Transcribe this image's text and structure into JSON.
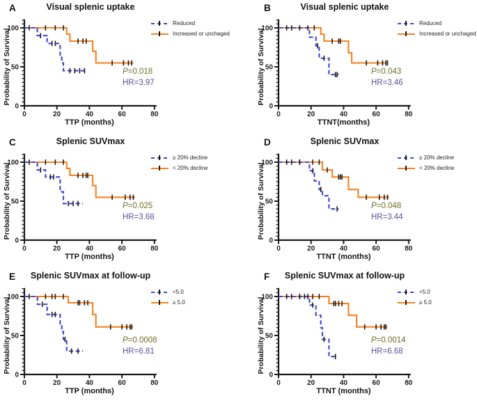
{
  "figure": {
    "ylabel": "Probability of Survival",
    "x_ticks": [
      0,
      20,
      40,
      60,
      80
    ],
    "y_ticks": [
      0,
      50,
      100
    ],
    "colors": {
      "blue": "#3f47cc",
      "orange": "#f58220",
      "censor": "#1a1a1a",
      "axis": "#1a1a1a",
      "p_text": "#6e6e28",
      "hr_text": "#5c4e9c"
    }
  },
  "chart_data": [
    {
      "type": "line",
      "letter": "A",
      "title": "Visual splenic uptake",
      "xlabel": "TTP (months)",
      "xlim": [
        0,
        80
      ],
      "ylim": [
        0,
        100
      ],
      "p_label": "P",
      "p_rest": "=0.018",
      "hr": "HR=3.97",
      "series": [
        {
          "name": "Reduced",
          "color": "blue",
          "dash": true,
          "points": [
            [
              0,
              100
            ],
            [
              8,
              100
            ],
            [
              8,
              90
            ],
            [
              14,
              90
            ],
            [
              14,
              80
            ],
            [
              22,
              80
            ],
            [
              22,
              65
            ],
            [
              23,
              65
            ],
            [
              23,
              55
            ],
            [
              24,
              55
            ],
            [
              24,
              45
            ],
            [
              38,
              45
            ]
          ],
          "censors": [
            [
              3,
              100
            ],
            [
              10,
              90
            ],
            [
              17,
              80
            ],
            [
              19,
              80
            ],
            [
              28,
              45
            ],
            [
              31,
              45
            ],
            [
              34,
              45
            ],
            [
              37,
              45
            ]
          ]
        },
        {
          "name": "Increased or unchaged",
          "color": "orange",
          "dash": false,
          "points": [
            [
              0,
              100
            ],
            [
              26,
              100
            ],
            [
              26,
              92
            ],
            [
              28,
              92
            ],
            [
              28,
              83
            ],
            [
              42,
              83
            ],
            [
              42,
              70
            ],
            [
              44,
              70
            ],
            [
              44,
              55
            ],
            [
              67,
              55
            ]
          ],
          "censors": [
            [
              13,
              100
            ],
            [
              19,
              100
            ],
            [
              24,
              100
            ],
            [
              33,
              83
            ],
            [
              36,
              83
            ],
            [
              38,
              83
            ],
            [
              54,
              55
            ],
            [
              61,
              55
            ],
            [
              64,
              55
            ],
            [
              66,
              55
            ]
          ]
        }
      ]
    },
    {
      "type": "line",
      "letter": "B",
      "title": "Visual splenic uptake",
      "xlabel": "TTNT(months)",
      "xlim": [
        0,
        80
      ],
      "ylim": [
        0,
        100
      ],
      "p_label": "P",
      "p_rest": "=0.043",
      "hr": "HR=3.46",
      "series": [
        {
          "name": "Reduced",
          "color": "blue",
          "dash": true,
          "points": [
            [
              0,
              100
            ],
            [
              19,
              100
            ],
            [
              19,
              88
            ],
            [
              23,
              88
            ],
            [
              23,
              77
            ],
            [
              25,
              77
            ],
            [
              25,
              61
            ],
            [
              31,
              61
            ],
            [
              31,
              40
            ],
            [
              37,
              40
            ]
          ],
          "censors": [
            [
              5,
              100
            ],
            [
              8,
              100
            ],
            [
              13,
              100
            ],
            [
              24,
              77
            ],
            [
              28,
              61
            ],
            [
              35,
              40
            ],
            [
              36,
              40
            ]
          ]
        },
        {
          "name": "Increased or unchaged",
          "color": "orange",
          "dash": false,
          "points": [
            [
              0,
              100
            ],
            [
              26,
              100
            ],
            [
              26,
              92
            ],
            [
              28,
              92
            ],
            [
              28,
              83
            ],
            [
              43,
              83
            ],
            [
              43,
              68
            ],
            [
              45,
              68
            ],
            [
              45,
              55
            ],
            [
              67,
              55
            ]
          ],
          "censors": [
            [
              18,
              100
            ],
            [
              22,
              100
            ],
            [
              33,
              83
            ],
            [
              37,
              83
            ],
            [
              38,
              83
            ],
            [
              54,
              55
            ],
            [
              61,
              55
            ],
            [
              64,
              55
            ],
            [
              66,
              55
            ],
            [
              67,
              55
            ]
          ]
        }
      ]
    },
    {
      "type": "line",
      "letter": "C",
      "title": "Splenic SUVmax",
      "xlabel": "TTP (months)",
      "xlim": [
        0,
        80
      ],
      "ylim": [
        0,
        100
      ],
      "p_label": "P",
      "p_rest": "=0.025",
      "hr": "HR=3.68",
      "series": [
        {
          "name": "≥ 20% decline",
          "color": "blue",
          "dash": true,
          "points": [
            [
              0,
              100
            ],
            [
              8,
              100
            ],
            [
              8,
              90
            ],
            [
              13,
              90
            ],
            [
              13,
              81
            ],
            [
              22,
              81
            ],
            [
              22,
              62
            ],
            [
              24,
              62
            ],
            [
              24,
              47
            ],
            [
              36,
              47
            ]
          ],
          "censors": [
            [
              3,
              100
            ],
            [
              10,
              90
            ],
            [
              16,
              81
            ],
            [
              18,
              81
            ],
            [
              27,
              47
            ],
            [
              30,
              47
            ],
            [
              33,
              47
            ]
          ]
        },
        {
          "name": "< 20% decline",
          "color": "orange",
          "dash": false,
          "points": [
            [
              0,
              100
            ],
            [
              26,
              100
            ],
            [
              26,
              92
            ],
            [
              28,
              92
            ],
            [
              28,
              83
            ],
            [
              42,
              83
            ],
            [
              42,
              70
            ],
            [
              44,
              70
            ],
            [
              44,
              55
            ],
            [
              68,
              55
            ]
          ],
          "censors": [
            [
              13,
              100
            ],
            [
              19,
              100
            ],
            [
              24,
              100
            ],
            [
              33,
              83
            ],
            [
              36,
              83
            ],
            [
              38,
              83
            ],
            [
              39,
              83
            ],
            [
              54,
              55
            ],
            [
              62,
              55
            ],
            [
              65,
              55
            ],
            [
              67,
              55
            ]
          ]
        }
      ]
    },
    {
      "type": "line",
      "letter": "D",
      "title": "Splenic SUVmax",
      "xlabel": "TTNT (months)",
      "xlim": [
        0,
        80
      ],
      "ylim": [
        0,
        100
      ],
      "p_label": "P",
      "p_rest": "=0.048",
      "hr": "HR=3.44",
      "series": [
        {
          "name": "≥ 20% decline",
          "color": "blue",
          "dash": true,
          "points": [
            [
              0,
              100
            ],
            [
              19,
              100
            ],
            [
              19,
              89
            ],
            [
              22,
              89
            ],
            [
              22,
              76
            ],
            [
              25,
              76
            ],
            [
              25,
              65
            ],
            [
              27,
              65
            ],
            [
              27,
              57
            ],
            [
              31,
              57
            ],
            [
              31,
              40
            ],
            [
              37,
              40
            ]
          ],
          "censors": [
            [
              5,
              100
            ],
            [
              8,
              100
            ],
            [
              13,
              100
            ],
            [
              21,
              89
            ],
            [
              26,
              65
            ],
            [
              36,
              40
            ]
          ]
        },
        {
          "name": "< 20% decline",
          "color": "orange",
          "dash": false,
          "points": [
            [
              0,
              100
            ],
            [
              27,
              100
            ],
            [
              27,
              90
            ],
            [
              33,
              90
            ],
            [
              33,
              81
            ],
            [
              43,
              81
            ],
            [
              43,
              65
            ],
            [
              49,
              65
            ],
            [
              49,
              55
            ],
            [
              68,
              55
            ]
          ],
          "censors": [
            [
              13,
              100
            ],
            [
              21,
              100
            ],
            [
              25,
              100
            ],
            [
              30,
              90
            ],
            [
              37,
              81
            ],
            [
              38,
              81
            ],
            [
              39,
              81
            ],
            [
              54,
              55
            ],
            [
              62,
              55
            ],
            [
              65,
              55
            ],
            [
              67,
              55
            ]
          ]
        }
      ]
    },
    {
      "type": "line",
      "letter": "E",
      "title": "Splenic SUVmax at follow-up",
      "xlabel": "TTP (months)",
      "xlim": [
        0,
        80
      ],
      "ylim": [
        0,
        100
      ],
      "p_label": "P",
      "p_rest": "=0.0008",
      "hr": "HR=6.81",
      "series": [
        {
          "name": "<5.0",
          "color": "blue",
          "dash": true,
          "points": [
            [
              0,
              100
            ],
            [
              8,
              100
            ],
            [
              8,
              90
            ],
            [
              14,
              90
            ],
            [
              14,
              77
            ],
            [
              22,
              77
            ],
            [
              22,
              65
            ],
            [
              23,
              65
            ],
            [
              23,
              55
            ],
            [
              24,
              55
            ],
            [
              24,
              45
            ],
            [
              26,
              45
            ],
            [
              26,
              30
            ],
            [
              36,
              30
            ]
          ],
          "censors": [
            [
              3,
              100
            ],
            [
              11,
              90
            ],
            [
              17,
              77
            ],
            [
              19,
              77
            ],
            [
              25,
              45
            ],
            [
              29,
              30
            ],
            [
              33,
              30
            ]
          ]
        },
        {
          "name": "≥ 5.0",
          "color": "orange",
          "dash": false,
          "points": [
            [
              0,
              100
            ],
            [
              27,
              100
            ],
            [
              27,
              92
            ],
            [
              42,
              92
            ],
            [
              42,
              77
            ],
            [
              44,
              77
            ],
            [
              44,
              61
            ],
            [
              67,
              61
            ]
          ],
          "censors": [
            [
              13,
              100
            ],
            [
              17,
              100
            ],
            [
              19,
              100
            ],
            [
              24,
              100
            ],
            [
              33,
              92
            ],
            [
              34,
              92
            ],
            [
              37,
              92
            ],
            [
              39,
              92
            ],
            [
              53,
              61
            ],
            [
              60,
              61
            ],
            [
              63,
              61
            ],
            [
              65,
              61
            ],
            [
              66,
              61
            ]
          ]
        }
      ]
    },
    {
      "type": "line",
      "letter": "F",
      "title": "Splenic SUVmax at follow-up",
      "xlabel": "TTNT (months)",
      "xlim": [
        0,
        80
      ],
      "ylim": [
        0,
        100
      ],
      "p_label": "P",
      "p_rest": "=0.0014",
      "hr": "HR=6.68",
      "series": [
        {
          "name": "<5.0",
          "color": "blue",
          "dash": true,
          "points": [
            [
              0,
              100
            ],
            [
              19,
              100
            ],
            [
              19,
              89
            ],
            [
              23,
              89
            ],
            [
              23,
              76
            ],
            [
              26,
              76
            ],
            [
              26,
              60
            ],
            [
              27,
              60
            ],
            [
              27,
              45
            ],
            [
              31,
              45
            ],
            [
              31,
              23
            ],
            [
              36,
              23
            ]
          ],
          "censors": [
            [
              5,
              100
            ],
            [
              8,
              100
            ],
            [
              13,
              100
            ],
            [
              16,
              100
            ],
            [
              21,
              89
            ],
            [
              28,
              45
            ],
            [
              35,
              23
            ]
          ]
        },
        {
          "name": "≥ 5.0",
          "color": "orange",
          "dash": false,
          "points": [
            [
              0,
              100
            ],
            [
              31,
              100
            ],
            [
              31,
              91
            ],
            [
              43,
              91
            ],
            [
              43,
              76
            ],
            [
              48,
              76
            ],
            [
              48,
              61
            ],
            [
              67,
              61
            ]
          ],
          "censors": [
            [
              13,
              100
            ],
            [
              18,
              100
            ],
            [
              21,
              100
            ],
            [
              25,
              100
            ],
            [
              34,
              91
            ],
            [
              35,
              91
            ],
            [
              37,
              91
            ],
            [
              39,
              91
            ],
            [
              53,
              61
            ],
            [
              60,
              61
            ],
            [
              63,
              61
            ],
            [
              65,
              61
            ],
            [
              66,
              61
            ]
          ]
        }
      ]
    }
  ]
}
